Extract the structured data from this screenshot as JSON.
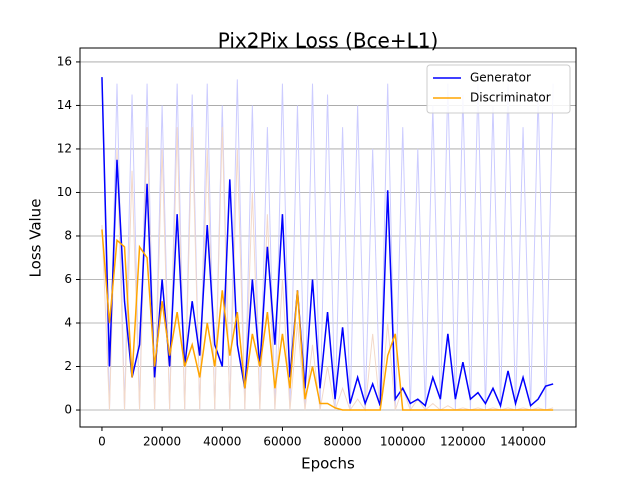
{
  "chart_data": {
    "type": "line",
    "title": "Pix2Pix Loss (Bce+L1)",
    "xlabel": "Epochs",
    "ylabel": "Loss Value",
    "x": [
      0,
      2500,
      5000,
      7500,
      10000,
      12500,
      15000,
      17500,
      20000,
      22500,
      25000,
      27500,
      30000,
      32500,
      35000,
      37500,
      40000,
      42500,
      45000,
      47500,
      50000,
      52500,
      55000,
      57500,
      60000,
      62500,
      65000,
      67500,
      70000,
      72500,
      75000,
      77500,
      80000,
      82500,
      85000,
      87500,
      90000,
      92500,
      95000,
      97500,
      100000,
      102500,
      105000,
      107500,
      110000,
      112500,
      115000,
      117500,
      120000,
      122500,
      125000,
      127500,
      130000,
      132500,
      135000,
      137500,
      140000,
      142500,
      145000,
      147500,
      150000
    ],
    "series": [
      {
        "color": "#ccccff",
        "values": [
          15.3,
          0,
          15,
          0,
          14.5,
          0,
          15,
          0,
          14,
          0,
          15,
          0,
          14.5,
          0,
          15,
          0,
          14,
          0,
          15.2,
          0,
          14,
          0,
          13,
          0,
          15,
          0,
          14,
          0,
          15,
          0,
          14.5,
          0,
          13,
          0,
          14,
          0,
          12,
          0,
          15,
          0,
          13,
          0,
          12,
          0,
          14,
          0,
          15,
          0,
          14.5,
          0,
          15,
          0,
          14,
          0,
          15,
          0,
          13,
          0,
          14.5,
          0,
          15
        ]
      },
      {
        "color": "#f3d9c9",
        "values": [
          8.5,
          0,
          12,
          0,
          11,
          0,
          13,
          0,
          12,
          0,
          13,
          0,
          13,
          0,
          12,
          0,
          13,
          0,
          12,
          0,
          10,
          0,
          9,
          0,
          6,
          0,
          4,
          0,
          3,
          0,
          2,
          0,
          1,
          0,
          0.5,
          0,
          3.5,
          0,
          4,
          0,
          1,
          0,
          0.5,
          0,
          0.3,
          0,
          0.2,
          0,
          0.1,
          0,
          0.1,
          0,
          0.1,
          0,
          0.1,
          0,
          0.1,
          0,
          0.1,
          0,
          0.1
        ]
      },
      {
        "name": "Generator",
        "color": "#0000ff",
        "values": [
          15.3,
          2,
          11.5,
          5,
          1.5,
          3,
          10.4,
          1.5,
          6,
          2,
          9,
          2,
          5,
          2.5,
          8.5,
          3,
          2,
          10.6,
          3,
          1,
          6,
          2,
          7.5,
          3,
          9,
          1.5,
          5.5,
          1,
          6,
          1,
          4.5,
          0.5,
          3.8,
          0.3,
          1.5,
          0.3,
          1.2,
          0.2,
          10.1,
          0.5,
          1,
          0.3,
          0.5,
          0.2,
          1.5,
          0.5,
          3.5,
          0.5,
          2.2,
          0.5,
          0.8,
          0.3,
          1,
          0.2,
          1.8,
          0.3,
          1.5,
          0.2,
          0.5,
          1.1,
          1.2
        ]
      },
      {
        "name": "Discriminator",
        "color": "#ffa500",
        "values": [
          8.3,
          4,
          7.8,
          7.5,
          1.5,
          7.5,
          7,
          2,
          5,
          2.5,
          4.5,
          2,
          3,
          1.5,
          4,
          2,
          5.5,
          2.5,
          4.5,
          1,
          3.5,
          2,
          4.5,
          1,
          3.5,
          1,
          5.5,
          0.5,
          2,
          0.3,
          0.3,
          0.1,
          0,
          0,
          0,
          0,
          0,
          0,
          2.5,
          3.5,
          0,
          0,
          0,
          0,
          0,
          0,
          0,
          0,
          0,
          0,
          0,
          0,
          0,
          0,
          0,
          0,
          0,
          0,
          0,
          0,
          0
        ]
      }
    ],
    "xlim": [
      -7300,
      157600
    ],
    "ylim": [
      -0.78,
      16.64
    ],
    "xticks": [
      0,
      20000,
      40000,
      60000,
      80000,
      100000,
      120000,
      140000
    ],
    "yticks": [
      0,
      2,
      4,
      6,
      8,
      10,
      12,
      14,
      16
    ],
    "grid": "y",
    "legend": "upper right"
  }
}
